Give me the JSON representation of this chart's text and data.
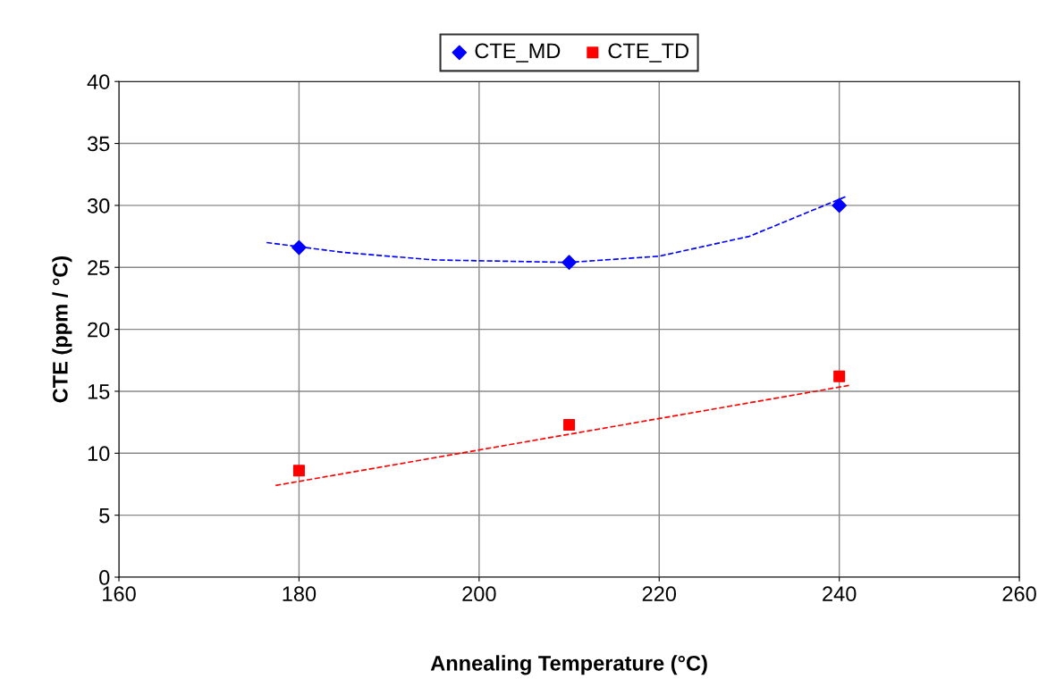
{
  "chart_data": {
    "type": "scatter",
    "xlabel": "Annealing Temperature (°C)",
    "ylabel": "CTE (ppm / °C)",
    "xlim": [
      160,
      260
    ],
    "xticks": [
      160,
      180,
      200,
      220,
      240,
      260
    ],
    "ylim": [
      0,
      40
    ],
    "yticks": [
      0,
      5,
      10,
      15,
      20,
      25,
      30,
      35,
      40
    ],
    "grid": true,
    "legend": "top",
    "series": [
      {
        "name": "CTE_MD",
        "color": "#0000ff",
        "marker": "diamond",
        "x": [
          180,
          210,
          240
        ],
        "values": [
          26.6,
          25.4,
          30.0
        ]
      },
      {
        "name": "CTE_TD",
        "color": "#ff0000",
        "marker": "square",
        "x": [
          180,
          210,
          240
        ],
        "values": [
          8.6,
          12.3,
          16.2
        ]
      },
      {
        "type": "line",
        "color": "#0000ff",
        "marker": "none",
        "line_style": "dashed",
        "x": [
          176.4,
          185,
          195,
          210,
          220,
          230,
          240.7
        ],
        "values": [
          27.0,
          26.2,
          25.6,
          25.4,
          25.9,
          27.5,
          30.7
        ]
      },
      {
        "type": "line",
        "color": "#ff0000",
        "marker": "none",
        "line_style": "dashed",
        "x": [
          177.4,
          241.3
        ],
        "values": [
          7.4,
          15.5
        ]
      }
    ]
  }
}
